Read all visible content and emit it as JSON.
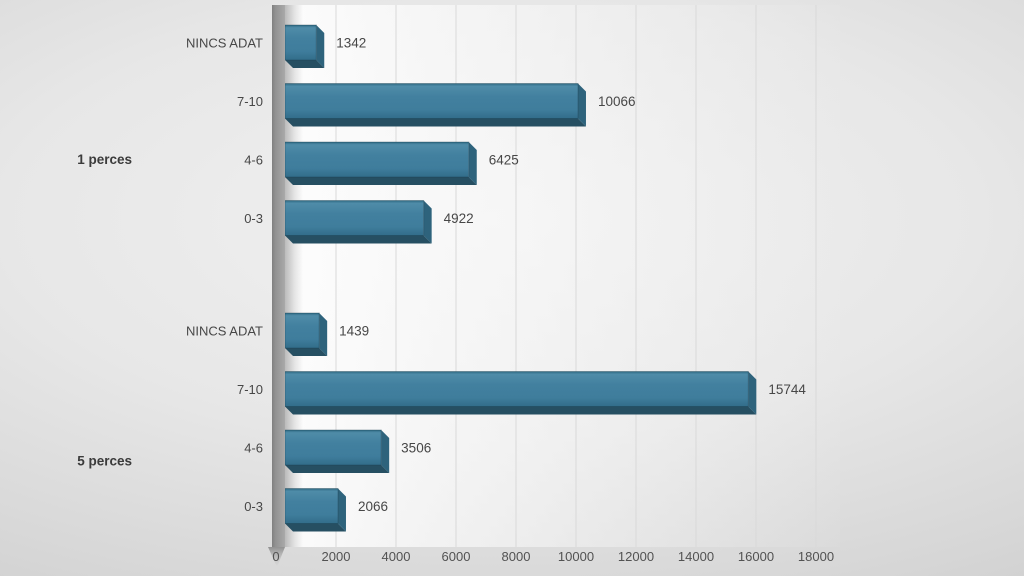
{
  "chart_data": {
    "type": "bar",
    "orientation": "horizontal",
    "style": "3d",
    "title": "",
    "legend_position": "none",
    "gridlines": "vertical",
    "value_labels": "outside-end",
    "groups": [
      {
        "label": "1 perces",
        "categories": [
          "NINCS ADAT",
          "7-10",
          "4-6",
          "0-3"
        ],
        "values": [
          1342,
          10066,
          6425,
          4922
        ]
      },
      {
        "label": "5 perces",
        "categories": [
          "NINCS ADAT",
          "7-10",
          "4-6",
          "0-3"
        ],
        "values": [
          1439,
          15744,
          3506,
          2066
        ]
      }
    ],
    "x_axis": {
      "min": 0,
      "max": 18000,
      "tick_step": 2000,
      "tick_labels": [
        "0",
        "2000",
        "4000",
        "6000",
        "8000",
        "10000",
        "12000",
        "14000",
        "16000",
        "18000"
      ]
    },
    "colors": {
      "bar_face": "#3f7d9c",
      "bar_face_highlight": "#4f8ca8",
      "bar_face_shade": "#326d8a",
      "bar_edge_dark": "#2e6a83",
      "bar_right_face": "#2e637c",
      "bar_bottom_face": "#264f62",
      "axis_wall": "#989898",
      "gridline": "#d9d9d9",
      "label_text": "#474747",
      "tick_text": "#525252",
      "group_text": "#3b3b3b",
      "background_light": "#f1f1f1",
      "background_dark": "#c5c5c5"
    }
  }
}
